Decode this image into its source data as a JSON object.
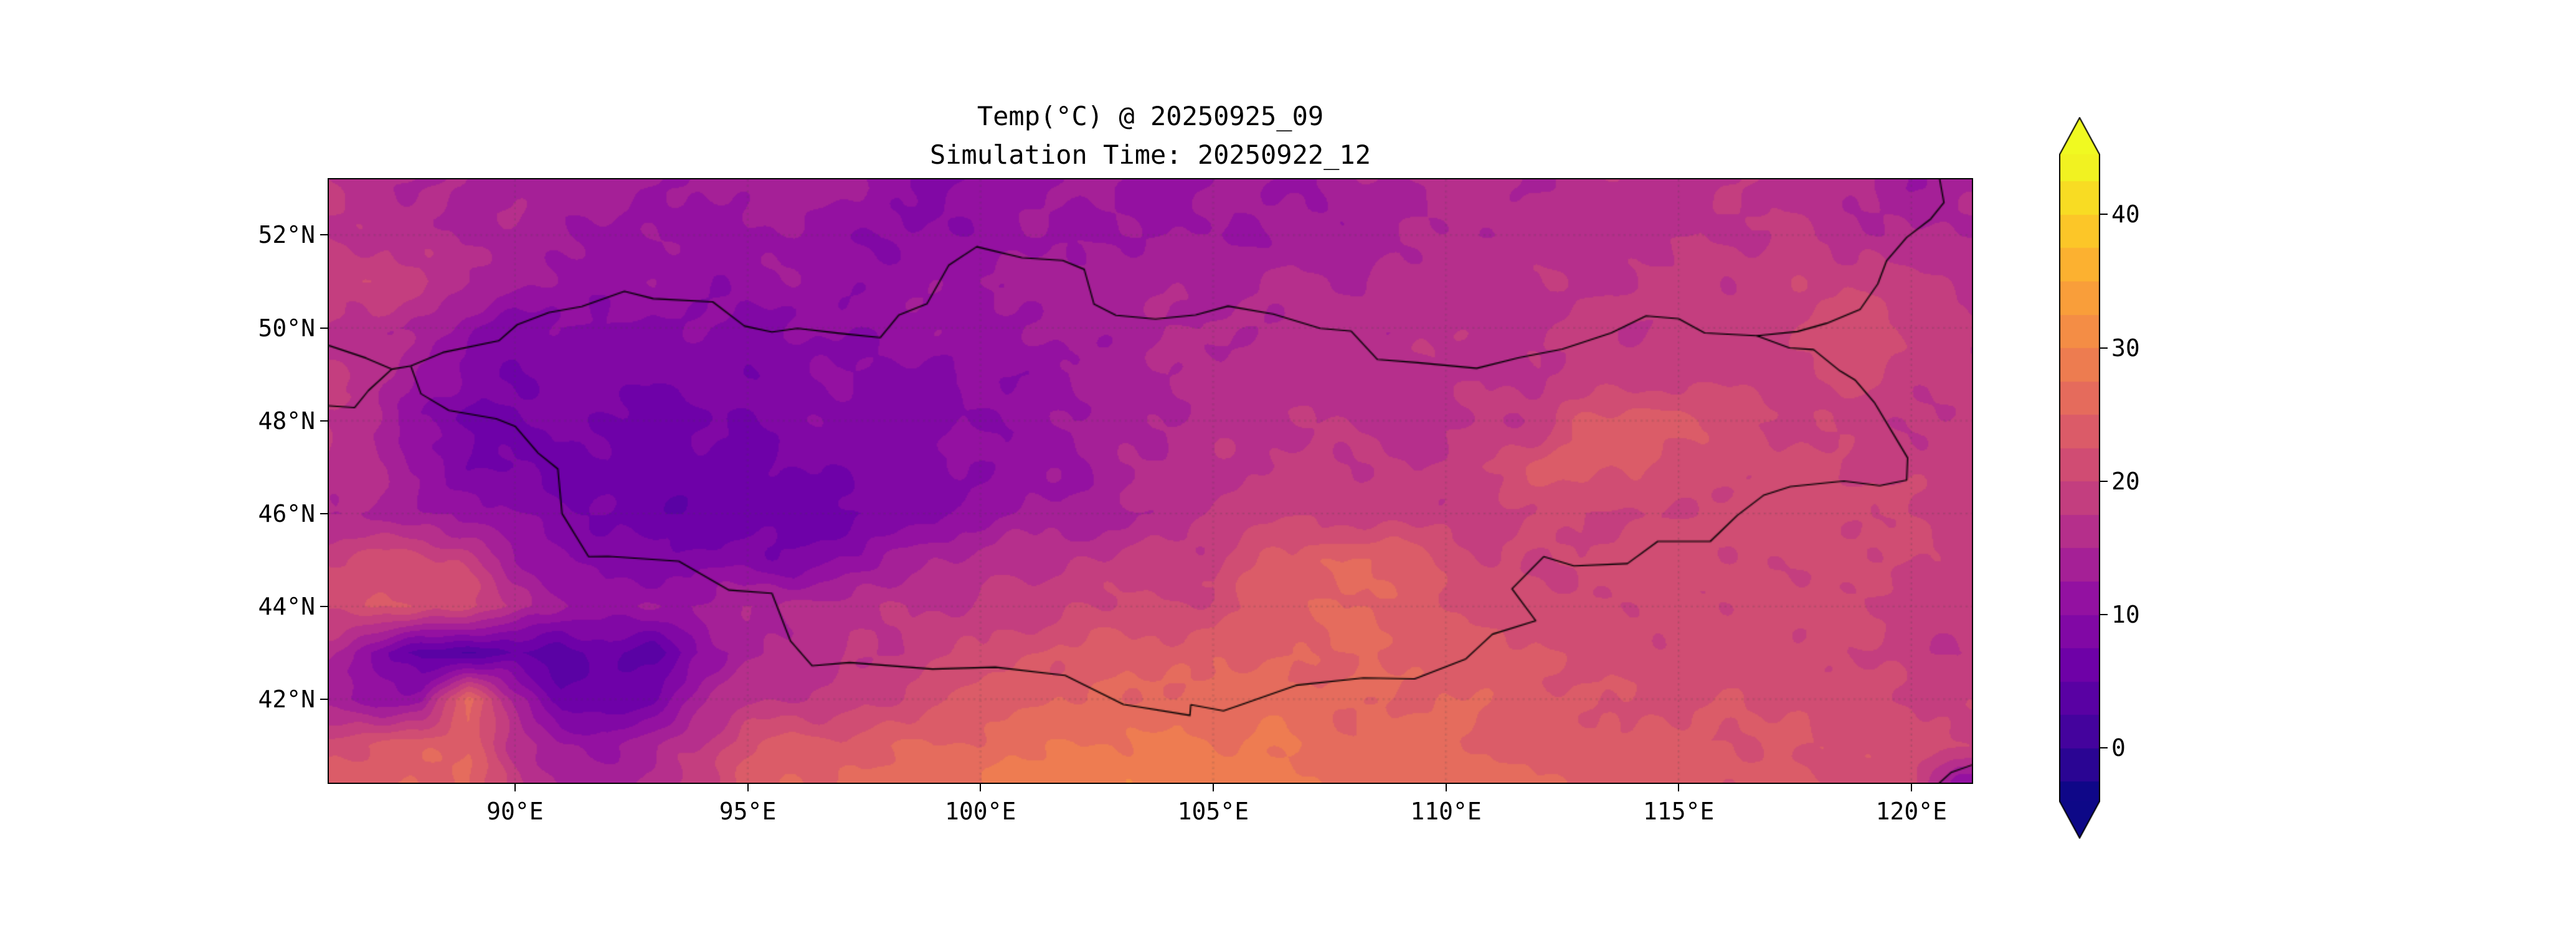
{
  "title": {
    "line1": "Temp(°C) @ 20250925_09",
    "line2": "Simulation Time: 20250922_12"
  },
  "axes": {
    "lon_min": 86.0,
    "lon_max": 121.3,
    "lat_min": 40.2,
    "lat_max": 53.2,
    "x_ticks": [
      {
        "value": 90,
        "label": "90°E"
      },
      {
        "value": 95,
        "label": "95°E"
      },
      {
        "value": 100,
        "label": "100°E"
      },
      {
        "value": 105,
        "label": "105°E"
      },
      {
        "value": 110,
        "label": "110°E"
      },
      {
        "value": 115,
        "label": "115°E"
      },
      {
        "value": 120,
        "label": "120°E"
      }
    ],
    "y_ticks": [
      {
        "value": 52,
        "label": "52°N"
      },
      {
        "value": 50,
        "label": "50°N"
      },
      {
        "value": 48,
        "label": "48°N"
      },
      {
        "value": 46,
        "label": "46°N"
      },
      {
        "value": 44,
        "label": "44°N"
      },
      {
        "value": 42,
        "label": "42°N"
      }
    ],
    "grid": true
  },
  "colorbar": {
    "vmin": -4,
    "vmax": 44.5,
    "extend": "both",
    "ticks": [
      {
        "value": 0,
        "label": "0"
      },
      {
        "value": 10,
        "label": "10"
      },
      {
        "value": 20,
        "label": "20"
      },
      {
        "value": 30,
        "label": "30"
      },
      {
        "value": 40,
        "label": "40"
      }
    ],
    "colormap": [
      "#0d0887",
      "#41049d",
      "#6a00a8",
      "#8f0da4",
      "#b12a90",
      "#cc4778",
      "#e16462",
      "#f2844b",
      "#fca636",
      "#fcce25",
      "#f0f921"
    ]
  },
  "chart_data": {
    "type": "heatmap",
    "title": "Temp(°C) @ 20250925_09",
    "subtitle": "Simulation Time: 20250922_12",
    "variable": "Temp",
    "units": "°C",
    "valid_time": "20250925_09",
    "simulation_time": "20250922_12",
    "level_step": 2.5,
    "lon": [
      86,
      87,
      88,
      89,
      90,
      91,
      92,
      93,
      94,
      95,
      96,
      97,
      98,
      99,
      100,
      101,
      102,
      103,
      104,
      105,
      106,
      107,
      108,
      109,
      110,
      111,
      112,
      113,
      114,
      115,
      116,
      117,
      118,
      119,
      120,
      121
    ],
    "lat": [
      53,
      52,
      51,
      50,
      49,
      48,
      47,
      46,
      45,
      44,
      43,
      42,
      41,
      40
    ],
    "values": [
      [
        17,
        16,
        15,
        14,
        15,
        13,
        14,
        13,
        12,
        13,
        14,
        13,
        12,
        9,
        10,
        12,
        13,
        12,
        11,
        12,
        13,
        12,
        14,
        15,
        16,
        16,
        15,
        16,
        17,
        16,
        17,
        17,
        16,
        15,
        13,
        14
      ],
      [
        18,
        17,
        16,
        15,
        14,
        13,
        12,
        12,
        11,
        12,
        12,
        11,
        10,
        10,
        11,
        12,
        12,
        13,
        12,
        13,
        12,
        13,
        14,
        15,
        15,
        16,
        16,
        17,
        16,
        17,
        17,
        18,
        17,
        16,
        15,
        15
      ],
      [
        19,
        20,
        18,
        16,
        13,
        12,
        11,
        12,
        11,
        11,
        12,
        11,
        11,
        12,
        13,
        13,
        14,
        14,
        14,
        15,
        15,
        15,
        15,
        16,
        16,
        17,
        17,
        17,
        18,
        18,
        18,
        19,
        19,
        20,
        18,
        17
      ],
      [
        17,
        16,
        14,
        11,
        9,
        9,
        10,
        9,
        10,
        9,
        10,
        10,
        11,
        12,
        12,
        13,
        13,
        14,
        15,
        15,
        16,
        16,
        16,
        16,
        17,
        17,
        17,
        18,
        18,
        18,
        19,
        19,
        21,
        22,
        20,
        18
      ],
      [
        18,
        17,
        12,
        9,
        8,
        8,
        9,
        8,
        9,
        8,
        9,
        10,
        9,
        9,
        10,
        11,
        12,
        13,
        15,
        16,
        16,
        17,
        16,
        17,
        17,
        17,
        18,
        18,
        18,
        19,
        19,
        19,
        20,
        21,
        19,
        18
      ],
      [
        17,
        15,
        10,
        7,
        7,
        8,
        7,
        6,
        7,
        8,
        9,
        9,
        8,
        9,
        10,
        11,
        12,
        14,
        15,
        16,
        17,
        17,
        17,
        17,
        17,
        18,
        18,
        23,
        24,
        24,
        22,
        20,
        19,
        19,
        18,
        18
      ],
      [
        17,
        16,
        12,
        8,
        7,
        6,
        7,
        6,
        7,
        6,
        7,
        8,
        9,
        10,
        10,
        11,
        12,
        15,
        16,
        17,
        17,
        18,
        18,
        18,
        18,
        20,
        23,
        24,
        23,
        22,
        20,
        21,
        21,
        20,
        19,
        19
      ],
      [
        15,
        14,
        13,
        12,
        10,
        8,
        7,
        6,
        5,
        6,
        5,
        7,
        8,
        9,
        12,
        13,
        13,
        14,
        16,
        18,
        19,
        19,
        19,
        19,
        19,
        19,
        20,
        20,
        20,
        20,
        21,
        21,
        21,
        21,
        20,
        19
      ],
      [
        20,
        21,
        21,
        19,
        13,
        11,
        9,
        8,
        9,
        9,
        8,
        10,
        12,
        15,
        16,
        17,
        17,
        18,
        18,
        19,
        23,
        24,
        25,
        24,
        22,
        20,
        20,
        20,
        21,
        21,
        21,
        20,
        21,
        20,
        20,
        19
      ],
      [
        21,
        22,
        22,
        21,
        17,
        13,
        11,
        12,
        13,
        15,
        16,
        16,
        17,
        17,
        18,
        19,
        20,
        20,
        20,
        21,
        24,
        25,
        25,
        24,
        23,
        21,
        21,
        20,
        20,
        21,
        21,
        21,
        21,
        20,
        19,
        19
      ],
      [
        15,
        10,
        4,
        2,
        5,
        3,
        6,
        4,
        10,
        14,
        16,
        17,
        18,
        19,
        20,
        22,
        23,
        24,
        24,
        24,
        24,
        25,
        25,
        25,
        24,
        23,
        23,
        22,
        21,
        21,
        21,
        21,
        21,
        20,
        19,
        17
      ],
      [
        13,
        11,
        12,
        26,
        14,
        6,
        5,
        8,
        14,
        17,
        17,
        18,
        20,
        22,
        23,
        24,
        25,
        25,
        26,
        26,
        26,
        26,
        25,
        25,
        25,
        24,
        23,
        23,
        22,
        22,
        22,
        22,
        22,
        21,
        20,
        19
      ],
      [
        22,
        23,
        24,
        25,
        16,
        13,
        12,
        14,
        18,
        22,
        24,
        24,
        25,
        25,
        26,
        27,
        28,
        28,
        28,
        28,
        28,
        27,
        26,
        26,
        26,
        25,
        24,
        24,
        23,
        23,
        23,
        23,
        22,
        22,
        21,
        20
      ],
      [
        24,
        25,
        25,
        26,
        18,
        15,
        14,
        16,
        20,
        24,
        25,
        26,
        26,
        27,
        28,
        29,
        30,
        30,
        29,
        29,
        28,
        28,
        27,
        27,
        26,
        26,
        25,
        25,
        24,
        24,
        23,
        23,
        23,
        22,
        21,
        8
      ]
    ]
  },
  "borders": {
    "mongolia": [
      [
        87.76,
        49.18
      ],
      [
        88.45,
        49.47
      ],
      [
        89.65,
        49.72
      ],
      [
        90.05,
        50.07
      ],
      [
        90.73,
        50.33
      ],
      [
        91.43,
        50.46
      ],
      [
        92.35,
        50.79
      ],
      [
        92.97,
        50.63
      ],
      [
        94.25,
        50.56
      ],
      [
        94.93,
        50.04
      ],
      [
        95.52,
        49.91
      ],
      [
        96.07,
        49.99
      ],
      [
        96.99,
        49.88
      ],
      [
        97.85,
        49.79
      ],
      [
        98.25,
        50.28
      ],
      [
        98.85,
        50.52
      ],
      [
        99.32,
        51.35
      ],
      [
        99.92,
        51.75
      ],
      [
        100.89,
        51.51
      ],
      [
        101.77,
        51.45
      ],
      [
        102.23,
        51.26
      ],
      [
        102.44,
        50.51
      ],
      [
        102.91,
        50.27
      ],
      [
        103.76,
        50.19
      ],
      [
        104.62,
        50.28
      ],
      [
        105.32,
        50.47
      ],
      [
        106.29,
        50.3
      ],
      [
        107.3,
        49.99
      ],
      [
        107.96,
        49.93
      ],
      [
        108.53,
        49.32
      ],
      [
        109.4,
        49.25
      ],
      [
        110.66,
        49.13
      ],
      [
        111.58,
        49.36
      ],
      [
        112.5,
        49.54
      ],
      [
        113.55,
        49.89
      ],
      [
        114.3,
        50.26
      ],
      [
        115.0,
        50.2
      ],
      [
        115.56,
        49.89
      ],
      [
        116.68,
        49.83
      ],
      [
        117.38,
        49.57
      ],
      [
        117.9,
        49.53
      ],
      [
        118.47,
        49.07
      ],
      [
        118.8,
        48.87
      ],
      [
        119.2,
        48.4
      ],
      [
        119.74,
        47.5
      ],
      [
        119.92,
        47.2
      ],
      [
        119.9,
        46.72
      ],
      [
        119.32,
        46.6
      ],
      [
        118.55,
        46.7
      ],
      [
        117.4,
        46.58
      ],
      [
        116.82,
        46.39
      ],
      [
        116.26,
        45.96
      ],
      [
        115.68,
        45.4
      ],
      [
        114.55,
        45.4
      ],
      [
        113.9,
        44.92
      ],
      [
        112.75,
        44.87
      ],
      [
        112.1,
        45.07
      ],
      [
        111.42,
        44.38
      ],
      [
        111.93,
        43.69
      ],
      [
        111.0,
        43.4
      ],
      [
        110.43,
        42.87
      ],
      [
        109.33,
        42.44
      ],
      [
        108.23,
        42.46
      ],
      [
        106.78,
        42.3
      ],
      [
        105.22,
        41.75
      ],
      [
        104.52,
        41.88
      ],
      [
        104.5,
        41.65
      ],
      [
        103.07,
        41.89
      ],
      [
        101.82,
        42.51
      ],
      [
        100.32,
        42.69
      ],
      [
        98.97,
        42.65
      ],
      [
        97.19,
        42.79
      ],
      [
        96.38,
        42.72
      ],
      [
        95.92,
        43.25
      ],
      [
        95.52,
        44.28
      ],
      [
        94.6,
        44.35
      ],
      [
        93.52,
        44.97
      ],
      [
        92.0,
        45.08
      ],
      [
        91.58,
        45.07
      ],
      [
        91.01,
        46.0
      ],
      [
        90.92,
        46.96
      ],
      [
        90.5,
        47.3
      ],
      [
        90.0,
        47.88
      ],
      [
        89.6,
        48.04
      ],
      [
        88.58,
        48.22
      ],
      [
        87.98,
        48.58
      ],
      [
        87.76,
        49.18
      ]
    ],
    "argun_river_border": [
      [
        116.68,
        49.83
      ],
      [
        117.55,
        49.92
      ],
      [
        118.18,
        50.1
      ],
      [
        118.9,
        50.4
      ],
      [
        119.28,
        50.95
      ],
      [
        119.47,
        51.45
      ],
      [
        119.9,
        51.95
      ],
      [
        120.42,
        52.35
      ],
      [
        120.7,
        52.7
      ],
      [
        120.6,
        53.25
      ]
    ],
    "west_border": [
      [
        86.0,
        49.62
      ],
      [
        86.8,
        49.35
      ],
      [
        87.35,
        49.11
      ],
      [
        87.76,
        49.18
      ]
    ],
    "kazakh_border": [
      [
        87.35,
        49.11
      ],
      [
        86.85,
        48.65
      ],
      [
        86.55,
        48.28
      ],
      [
        86.0,
        48.32
      ]
    ],
    "coast_segment": [
      [
        120.55,
        40.15
      ],
      [
        120.85,
        40.42
      ],
      [
        121.35,
        40.6
      ]
    ]
  }
}
